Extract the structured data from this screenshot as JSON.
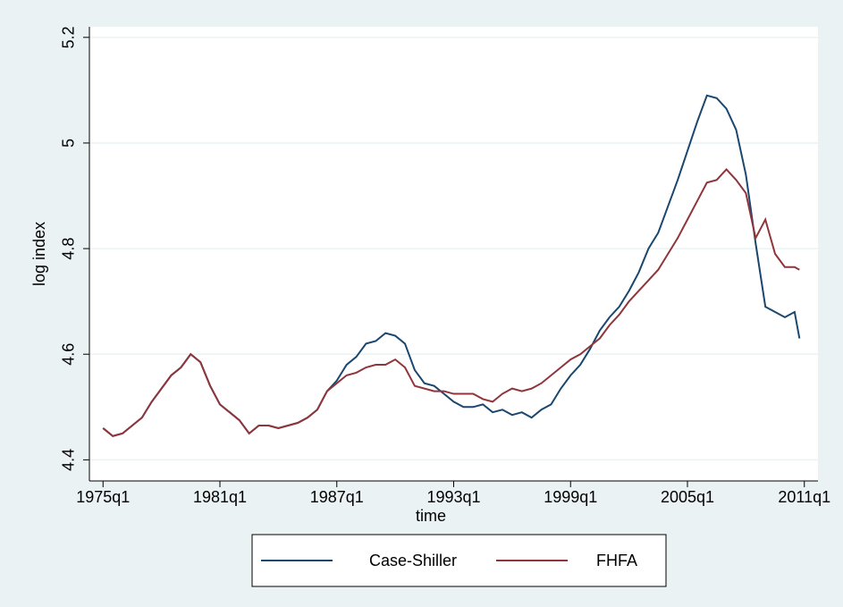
{
  "chart_data": {
    "type": "line",
    "x_label": "time",
    "y_label": "log index",
    "x": [
      1975,
      1975.5,
      1976,
      1976.5,
      1977,
      1977.5,
      1978,
      1978.5,
      1979,
      1979.5,
      1980,
      1980.5,
      1981,
      1981.5,
      1982,
      1982.5,
      1983,
      1983.5,
      1984,
      1984.5,
      1985,
      1985.5,
      1986,
      1986.5,
      1987,
      1987.5,
      1988,
      1988.5,
      1989,
      1989.5,
      1990,
      1990.5,
      1991,
      1991.5,
      1992,
      1992.5,
      1993,
      1993.5,
      1994,
      1994.5,
      1995,
      1995.5,
      1996,
      1996.5,
      1997,
      1997.5,
      1998,
      1998.5,
      1999,
      1999.5,
      2000,
      2000.5,
      2001,
      2001.5,
      2002,
      2002.5,
      2003,
      2003.5,
      2004,
      2004.5,
      2005,
      2005.5,
      2006,
      2006.5,
      2007,
      2007.5,
      2008,
      2008.5,
      2009,
      2009.5,
      2010,
      2010.5,
      2010.75
    ],
    "series": [
      {
        "name": "Case-Shiller",
        "color": "#1a476f",
        "values": [
          4.46,
          4.445,
          4.45,
          4.465,
          4.48,
          4.51,
          4.535,
          4.56,
          4.575,
          4.6,
          4.585,
          4.54,
          4.505,
          4.49,
          4.475,
          4.45,
          4.465,
          4.465,
          4.46,
          4.465,
          4.47,
          4.48,
          4.495,
          4.53,
          4.55,
          4.58,
          4.595,
          4.62,
          4.625,
          4.64,
          4.635,
          4.62,
          4.57,
          4.545,
          4.54,
          4.525,
          4.51,
          4.5,
          4.5,
          4.505,
          4.49,
          4.495,
          4.485,
          4.49,
          4.48,
          4.495,
          4.505,
          4.535,
          4.56,
          4.58,
          4.61,
          4.645,
          4.67,
          4.69,
          4.72,
          4.755,
          4.8,
          4.83,
          4.88,
          4.93,
          4.985,
          5.04,
          5.09,
          5.085,
          5.065,
          5.025,
          4.94,
          4.81,
          4.69,
          4.68,
          4.67,
          4.68,
          4.63
        ]
      },
      {
        "name": "FHFA",
        "color": "#90353b",
        "values": [
          4.46,
          4.445,
          4.45,
          4.465,
          4.48,
          4.51,
          4.535,
          4.56,
          4.575,
          4.6,
          4.585,
          4.54,
          4.505,
          4.49,
          4.475,
          4.45,
          4.465,
          4.465,
          4.46,
          4.465,
          4.47,
          4.48,
          4.495,
          4.53,
          4.545,
          4.56,
          4.565,
          4.575,
          4.58,
          4.58,
          4.59,
          4.575,
          4.54,
          4.535,
          4.53,
          4.53,
          4.525,
          4.525,
          4.525,
          4.515,
          4.51,
          4.525,
          4.535,
          4.53,
          4.535,
          4.545,
          4.56,
          4.575,
          4.59,
          4.6,
          4.615,
          4.63,
          4.655,
          4.675,
          4.7,
          4.72,
          4.74,
          4.76,
          4.79,
          4.82,
          4.855,
          4.89,
          4.925,
          4.93,
          4.95,
          4.93,
          4.905,
          4.82,
          4.855,
          4.79,
          4.765,
          4.765,
          4.76
        ]
      }
    ],
    "xlim": [
      1974.3,
      2011.7
    ],
    "xticks": [
      {
        "value": 1975,
        "label": "1975q1"
      },
      {
        "value": 1981,
        "label": "1981q1"
      },
      {
        "value": 1987,
        "label": "1987q1"
      },
      {
        "value": 1993,
        "label": "1993q1"
      },
      {
        "value": 1999,
        "label": "1999q1"
      },
      {
        "value": 2005,
        "label": "2005q1"
      },
      {
        "value": 2011,
        "label": "2011q1"
      }
    ],
    "ylim": [
      4.36,
      5.22
    ],
    "yticks": [
      4.4,
      4.6,
      4.8,
      5,
      5.2
    ],
    "grid": true
  }
}
